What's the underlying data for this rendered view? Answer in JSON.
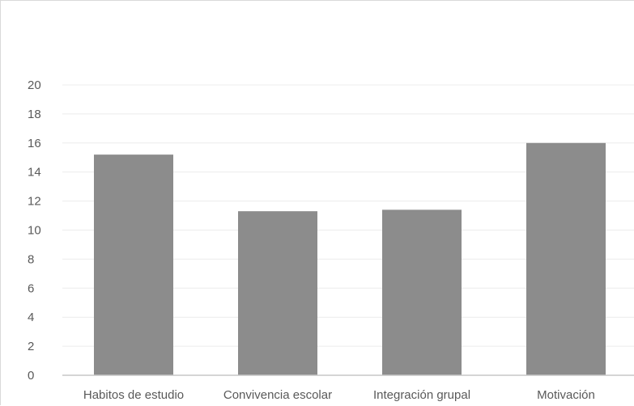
{
  "chart_data": {
    "type": "bar",
    "title": "",
    "xlabel": "",
    "ylabel": "",
    "categories": [
      "Habitos de estudio",
      "Convivencia escolar",
      "Integración grupal",
      "Motivación"
    ],
    "values": [
      15.2,
      11.3,
      11.4,
      16.0
    ],
    "ylim": [
      0,
      20
    ],
    "yticks": [
      0,
      2,
      4,
      6,
      8,
      10,
      12,
      14,
      16,
      18,
      20
    ],
    "grid": true,
    "legend": "none",
    "bar_color": "#8c8c8c"
  }
}
